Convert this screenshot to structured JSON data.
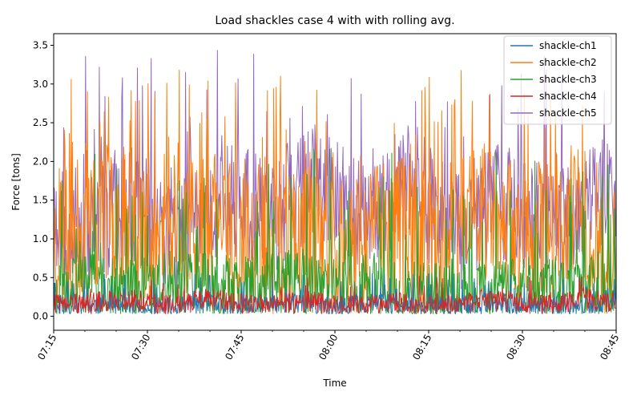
{
  "chart_data": {
    "type": "line",
    "title": "Load shackles case 4 with with rolling avg.",
    "xlabel": "Time",
    "ylabel": "Force [tons]",
    "xlim": [
      "07:15",
      "08:45"
    ],
    "ylim": [
      -0.18,
      3.65
    ],
    "x_ticks": [
      "07:15",
      "07:30",
      "07:45",
      "08:00",
      "08:15",
      "08:30",
      "08:45"
    ],
    "y_ticks": [
      "0.0",
      "0.5",
      "1.0",
      "1.5",
      "2.0",
      "2.5",
      "3.0",
      "3.5"
    ],
    "grid": false,
    "legend_position": "top-right",
    "sample_interval_seconds": 6,
    "series": [
      {
        "name": "shackle-ch1",
        "color": "#1f77b4",
        "base": 0.14,
        "spread": 0.13,
        "spike_rate": 0.1,
        "spike_max": 0.55,
        "seed": 11
      },
      {
        "name": "shackle-ch2",
        "color": "#ff7f0e",
        "base": 1.05,
        "spread": 0.95,
        "spike_rate": 0.14,
        "spike_max": 3.2,
        "seed": 23
      },
      {
        "name": "shackle-ch3",
        "color": "#2ca02c",
        "base": 0.35,
        "spread": 0.45,
        "spike_rate": 0.1,
        "spike_max": 2.2,
        "seed": 37
      },
      {
        "name": "shackle-ch4",
        "color": "#d62728",
        "base": 0.17,
        "spread": 0.14,
        "spike_rate": 0.06,
        "spike_max": 0.55,
        "seed": 41
      },
      {
        "name": "shackle-ch5",
        "color": "#9467bd",
        "base": 1.4,
        "spread": 0.8,
        "spike_rate": 0.1,
        "spike_max": 3.45,
        "seed": 53
      }
    ]
  }
}
